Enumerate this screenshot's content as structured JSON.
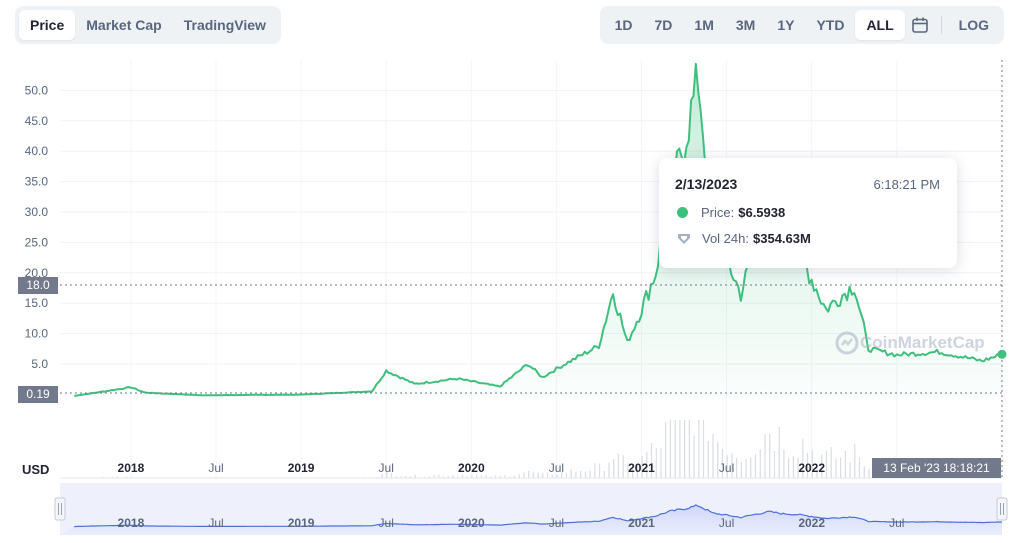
{
  "tabs_left": [
    "Price",
    "Market Cap",
    "TradingView"
  ],
  "tabs_left_active": 0,
  "tabs_right": [
    "1D",
    "7D",
    "1M",
    "3M",
    "1Y",
    "YTD",
    "ALL"
  ],
  "tabs_right_active": 6,
  "log_label": "LOG",
  "calendar_icon": "calendar-icon",
  "tooltip": {
    "date": "2/13/2023",
    "time": "6:18:21 PM",
    "price_label": "Price:",
    "price_value": "$6.5938",
    "vol_label": "Vol 24h:",
    "vol_value": "$354.63M"
  },
  "watermark": "CoinMarketCap",
  "crosshair": {
    "y_label": "18.0",
    "low_label": "0.19",
    "x_label": "13 Feb '23   18:18:21"
  },
  "currency": "USD",
  "colors": {
    "line": "#3ebf7e",
    "volume": "#d9dde4",
    "navigator_line": "#4d6fd6",
    "navigator_fill": "#e2e7f9"
  },
  "chart_data": {
    "type": "line",
    "y_ticks": [
      5.0,
      10.0,
      15.0,
      20.0,
      25.0,
      30.0,
      35.0,
      40.0,
      45.0,
      50.0
    ],
    "x_tick_labels": [
      "2018",
      "Jul",
      "2019",
      "Jul",
      "2020",
      "Jul",
      "2021",
      "Jul",
      "2022",
      "Jul"
    ],
    "ylim": [
      0,
      52
    ],
    "grid": true,
    "series": [
      {
        "values": [
          {
            "x": "2017-09",
            "y": 0.2
          },
          {
            "x": "2018-01",
            "y": 1.5
          },
          {
            "x": "2018-02",
            "y": 0.7
          },
          {
            "x": "2018-06",
            "y": 0.3
          },
          {
            "x": "2019-01",
            "y": 0.4
          },
          {
            "x": "2019-06",
            "y": 0.9
          },
          {
            "x": "2019-07",
            "y": 4.0
          },
          {
            "x": "2019-09",
            "y": 2.0
          },
          {
            "x": "2019-12",
            "y": 2.8
          },
          {
            "x": "2020-03",
            "y": 1.6
          },
          {
            "x": "2020-05",
            "y": 5.0
          },
          {
            "x": "2020-06",
            "y": 3.0
          },
          {
            "x": "2020-08",
            "y": 5.5
          },
          {
            "x": "2020-10",
            "y": 8.0
          },
          {
            "x": "2020-11",
            "y": 17.0
          },
          {
            "x": "2020-12",
            "y": 8.5
          },
          {
            "x": "2021-01",
            "y": 14.0
          },
          {
            "x": "2021-02",
            "y": 20.0
          },
          {
            "x": "2021-03",
            "y": 33.0
          },
          {
            "x": "2021-04",
            "y": 41.0
          },
          {
            "x": "2021-05",
            "y": 52.0
          },
          {
            "x": "2021-06",
            "y": 28.0
          },
          {
            "x": "2021-08",
            "y": 16.5
          },
          {
            "x": "2021-10",
            "y": 32.0
          },
          {
            "x": "2021-11",
            "y": 26.0
          },
          {
            "x": "2021-12",
            "y": 24.0
          },
          {
            "x": "2022-02",
            "y": 14.0
          },
          {
            "x": "2022-04",
            "y": 18.0
          },
          {
            "x": "2022-05",
            "y": 7.5
          },
          {
            "x": "2022-07",
            "y": 6.5
          },
          {
            "x": "2022-10",
            "y": 7.0
          },
          {
            "x": "2023-01",
            "y": 5.5
          },
          {
            "x": "2023-02",
            "y": 6.5938
          }
        ]
      }
    ]
  }
}
